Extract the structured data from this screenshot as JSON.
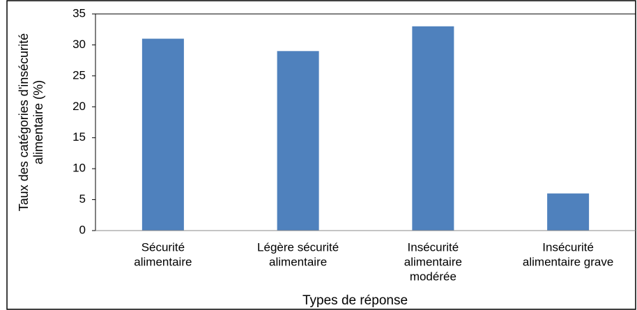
{
  "chart_data": {
    "type": "bar",
    "categories": [
      [
        "Sécurité",
        "alimentaire"
      ],
      [
        "Légère sécurité",
        "alimentaire"
      ],
      [
        "Insécurité",
        "alimentaire",
        "modérée"
      ],
      [
        "Insécurité",
        "alimentaire grave"
      ]
    ],
    "values": [
      31,
      29,
      33,
      6
    ],
    "color": "#4f81bd",
    "ylim": [
      0,
      35
    ],
    "yticks": [
      0,
      5,
      10,
      15,
      20,
      25,
      30,
      35
    ],
    "xlabel": "Types de réponse",
    "ylabel": [
      "Taux des catégories d'insécurité",
      "alimentaire (%)"
    ]
  }
}
